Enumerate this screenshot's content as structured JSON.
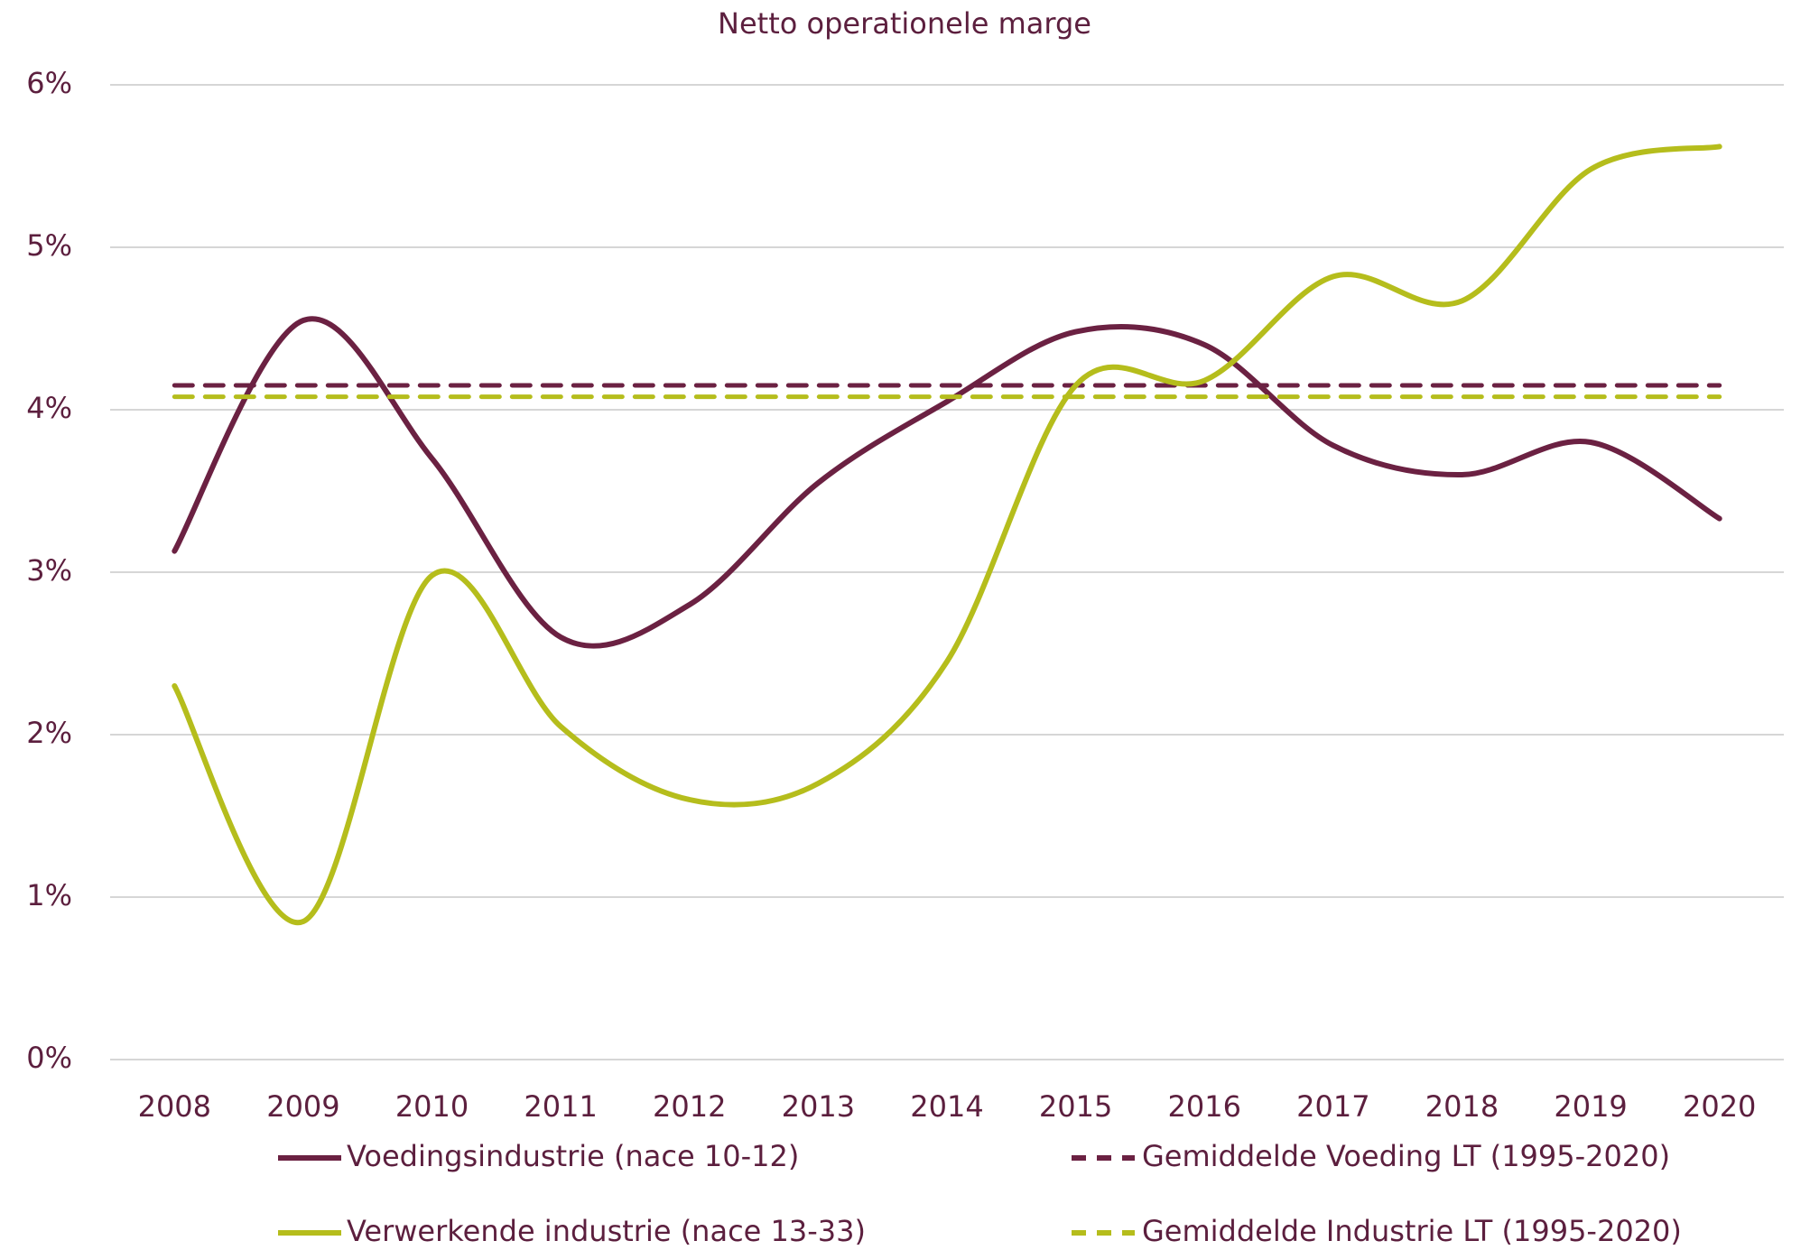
{
  "chart_data": {
    "type": "line",
    "title": "Netto operationele marge",
    "categories": [
      "2008",
      "2009",
      "2010",
      "2011",
      "2012",
      "2013",
      "2014",
      "2015",
      "2016",
      "2017",
      "2018",
      "2019",
      "2020"
    ],
    "series": [
      {
        "name": "Voedingsindustrie (nace 10-12)",
        "color": "#6b2142",
        "dashed": false,
        "smooth": true,
        "values": [
          3.13,
          4.55,
          3.7,
          2.6,
          2.8,
          3.55,
          4.05,
          4.48,
          4.4,
          3.78,
          3.6,
          3.8,
          3.33
        ]
      },
      {
        "name": "Gemiddelde Voeding LT (1995-2020)",
        "color": "#6b2142",
        "dashed": true,
        "smooth": false,
        "values": [
          4.15,
          4.15,
          4.15,
          4.15,
          4.15,
          4.15,
          4.15,
          4.15,
          4.15,
          4.15,
          4.15,
          4.15,
          4.15
        ]
      },
      {
        "name": "Verwerkende industrie (nace 13-33)",
        "color": "#b5bd1c",
        "dashed": false,
        "smooth": true,
        "values": [
          2.3,
          0.85,
          2.98,
          2.05,
          1.6,
          1.7,
          2.45,
          4.15,
          4.18,
          4.82,
          4.67,
          5.48,
          5.62
        ]
      },
      {
        "name": "Gemiddelde Industrie LT (1995-2020)",
        "color": "#b5bd1c",
        "dashed": true,
        "smooth": false,
        "values": [
          4.08,
          4.08,
          4.08,
          4.08,
          4.08,
          4.08,
          4.08,
          4.08,
          4.08,
          4.08,
          4.08,
          4.08,
          4.08
        ]
      }
    ],
    "ylim": [
      0,
      6
    ],
    "yticks": [
      {
        "value": 0,
        "label": "0%"
      },
      {
        "value": 1,
        "label": "1%"
      },
      {
        "value": 2,
        "label": "2%"
      },
      {
        "value": 3,
        "label": "3%"
      },
      {
        "value": 4,
        "label": "4%"
      },
      {
        "value": 5,
        "label": "5%"
      },
      {
        "value": 6,
        "label": "6%"
      }
    ],
    "grid": true,
    "legend": "bottom"
  }
}
